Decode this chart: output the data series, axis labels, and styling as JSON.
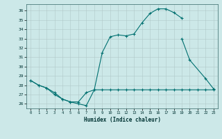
{
  "bg_color": "#cce8e8",
  "line_color": "#007070",
  "xlabel": "Humidex (Indice chaleur)",
  "xlim": [
    -0.5,
    23.5
  ],
  "ylim": [
    25.5,
    36.7
  ],
  "yticks": [
    26,
    27,
    28,
    29,
    30,
    31,
    32,
    33,
    34,
    35,
    36
  ],
  "xticks": [
    0,
    1,
    2,
    3,
    4,
    5,
    6,
    7,
    8,
    9,
    10,
    11,
    12,
    13,
    14,
    15,
    16,
    17,
    18,
    19,
    20,
    21,
    22,
    23
  ],
  "series": [
    {
      "x": [
        0,
        1,
        2,
        3,
        4,
        5,
        6,
        7,
        8,
        9,
        10,
        11,
        12,
        13,
        14,
        15,
        16,
        17,
        18,
        19
      ],
      "y": [
        28.5,
        28.0,
        27.7,
        27.0,
        26.5,
        26.2,
        26.0,
        25.8,
        27.5,
        31.5,
        33.2,
        33.4,
        33.3,
        33.5,
        34.7,
        35.7,
        36.2,
        36.2,
        35.8,
        35.2
      ]
    },
    {
      "x": [
        19,
        20,
        22,
        23
      ],
      "y": [
        33.0,
        30.7,
        28.7,
        27.6
      ]
    },
    {
      "x": [
        0,
        1,
        2,
        3,
        4,
        5,
        6,
        7,
        8,
        9,
        10,
        11,
        12,
        13,
        14,
        15,
        16,
        17,
        18,
        19,
        20,
        21,
        22,
        23
      ],
      "y": [
        28.5,
        28.0,
        27.7,
        27.2,
        26.5,
        26.2,
        26.2,
        27.2,
        27.5,
        27.5,
        27.5,
        27.5,
        27.5,
        27.5,
        27.5,
        27.5,
        27.5,
        27.5,
        27.5,
        27.5,
        27.5,
        27.5,
        27.5,
        27.5
      ]
    }
  ]
}
